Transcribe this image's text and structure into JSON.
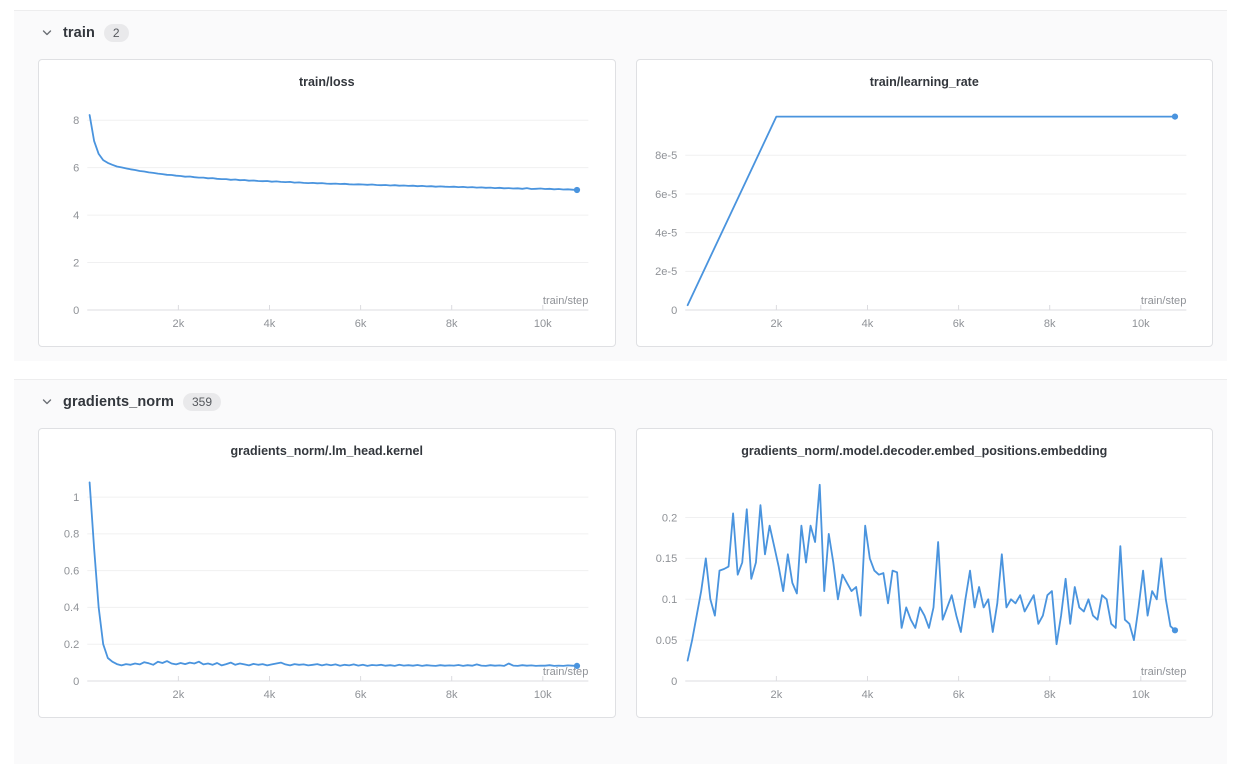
{
  "accent_color": "#4a94de",
  "grid_color": "#f0f0f1",
  "axis_color": "#dcdce0",
  "tick_text_color": "#8f9297",
  "sections": [
    {
      "label": "train",
      "badge": "2"
    },
    {
      "label": "gradients_norm",
      "badge": "359"
    }
  ],
  "chart_data": [
    {
      "type": "line",
      "title": "train/loss",
      "xlabel": "train/step",
      "xlim": [
        0,
        11000
      ],
      "ylim": [
        0,
        8.6
      ],
      "x_ticks": [
        {
          "v": 2000,
          "l": "2k"
        },
        {
          "v": 4000,
          "l": "4k"
        },
        {
          "v": 6000,
          "l": "6k"
        },
        {
          "v": 8000,
          "l": "8k"
        },
        {
          "v": 10000,
          "l": "10k"
        }
      ],
      "y_ticks": [
        {
          "v": 0,
          "l": "0"
        },
        {
          "v": 2,
          "l": "2"
        },
        {
          "v": 4,
          "l": "4"
        },
        {
          "v": 6,
          "l": "6"
        },
        {
          "v": 8,
          "l": "8"
        }
      ],
      "x_start": 50,
      "x_step": 100,
      "end_dot": true,
      "values": [
        8.22,
        7.12,
        6.58,
        6.32,
        6.2,
        6.12,
        6.05,
        6.01,
        5.97,
        5.93,
        5.9,
        5.86,
        5.84,
        5.8,
        5.78,
        5.75,
        5.73,
        5.7,
        5.69,
        5.66,
        5.65,
        5.62,
        5.63,
        5.6,
        5.58,
        5.58,
        5.55,
        5.56,
        5.53,
        5.52,
        5.52,
        5.49,
        5.5,
        5.47,
        5.48,
        5.45,
        5.46,
        5.44,
        5.43,
        5.44,
        5.41,
        5.42,
        5.4,
        5.39,
        5.4,
        5.37,
        5.38,
        5.36,
        5.35,
        5.36,
        5.34,
        5.35,
        5.33,
        5.32,
        5.33,
        5.31,
        5.32,
        5.3,
        5.29,
        5.3,
        5.29,
        5.28,
        5.29,
        5.27,
        5.26,
        5.27,
        5.25,
        5.26,
        5.24,
        5.25,
        5.23,
        5.24,
        5.22,
        5.23,
        5.21,
        5.22,
        5.2,
        5.21,
        5.2,
        5.19,
        5.2,
        5.18,
        5.19,
        5.17,
        5.18,
        5.16,
        5.17,
        5.15,
        5.16,
        5.14,
        5.15,
        5.13,
        5.14,
        5.12,
        5.13,
        5.11,
        5.14,
        5.1,
        5.11,
        5.12,
        5.1,
        5.11,
        5.09,
        5.1,
        5.08,
        5.09,
        5.07,
        5.06
      ]
    },
    {
      "type": "line",
      "title": "train/learning_rate",
      "xlabel": "train/step",
      "xlim": [
        0,
        11000
      ],
      "ylim": [
        0,
        0.0001055
      ],
      "x_ticks": [
        {
          "v": 2000,
          "l": "2k"
        },
        {
          "v": 4000,
          "l": "4k"
        },
        {
          "v": 6000,
          "l": "6k"
        },
        {
          "v": 8000,
          "l": "8k"
        },
        {
          "v": 10000,
          "l": "10k"
        }
      ],
      "y_ticks": [
        {
          "v": 0,
          "l": "0"
        },
        {
          "v": 2e-05,
          "l": "2e-5"
        },
        {
          "v": 4e-05,
          "l": "4e-5"
        },
        {
          "v": 6e-05,
          "l": "6e-5"
        },
        {
          "v": 8e-05,
          "l": "8e-5"
        }
      ],
      "end_dot": true,
      "x": [
        50,
        500,
        1000,
        1500,
        2000,
        3000,
        4000,
        5000,
        6000,
        7000,
        8000,
        9000,
        10000,
        10750
      ],
      "values": [
        2.5e-06,
        2.5e-05,
        5e-05,
        7.5e-05,
        0.0001,
        0.0001,
        0.0001,
        0.0001,
        0.0001,
        0.0001,
        0.0001,
        0.0001,
        0.0001,
        0.0001
      ]
    },
    {
      "type": "line",
      "title": "gradients_norm/.lm_head.kernel",
      "xlabel": "train/step",
      "xlim": [
        0,
        11000
      ],
      "ylim": [
        0,
        1.12
      ],
      "x_ticks": [
        {
          "v": 2000,
          "l": "2k"
        },
        {
          "v": 4000,
          "l": "4k"
        },
        {
          "v": 6000,
          "l": "6k"
        },
        {
          "v": 8000,
          "l": "8k"
        },
        {
          "v": 10000,
          "l": "10k"
        }
      ],
      "y_ticks": [
        {
          "v": 0,
          "l": "0"
        },
        {
          "v": 0.2,
          "l": "0.2"
        },
        {
          "v": 0.4,
          "l": "0.4"
        },
        {
          "v": 0.6,
          "l": "0.6"
        },
        {
          "v": 0.8,
          "l": "0.8"
        },
        {
          "v": 1,
          "l": "1"
        }
      ],
      "x_start": 50,
      "x_step": 100,
      "end_dot": true,
      "values": [
        1.08,
        0.72,
        0.4,
        0.2,
        0.125,
        0.105,
        0.092,
        0.085,
        0.092,
        0.088,
        0.095,
        0.09,
        0.102,
        0.096,
        0.088,
        0.105,
        0.098,
        0.108,
        0.095,
        0.09,
        0.098,
        0.092,
        0.1,
        0.095,
        0.105,
        0.09,
        0.095,
        0.088,
        0.098,
        0.085,
        0.092,
        0.1,
        0.088,
        0.095,
        0.09,
        0.085,
        0.093,
        0.088,
        0.092,
        0.085,
        0.09,
        0.095,
        0.1,
        0.09,
        0.085,
        0.092,
        0.088,
        0.09,
        0.085,
        0.088,
        0.092,
        0.085,
        0.09,
        0.086,
        0.09,
        0.083,
        0.088,
        0.085,
        0.09,
        0.084,
        0.088,
        0.082,
        0.087,
        0.085,
        0.088,
        0.083,
        0.086,
        0.082,
        0.088,
        0.084,
        0.086,
        0.083,
        0.087,
        0.082,
        0.086,
        0.084,
        0.082,
        0.086,
        0.083,
        0.085,
        0.084,
        0.087,
        0.082,
        0.086,
        0.083,
        0.09,
        0.084,
        0.082,
        0.086,
        0.083,
        0.085,
        0.082,
        0.095,
        0.084,
        0.082,
        0.086,
        0.083,
        0.085,
        0.082,
        0.084,
        0.083,
        0.086,
        0.082,
        0.084,
        0.082,
        0.085,
        0.083,
        0.082
      ]
    },
    {
      "type": "line",
      "title": "gradients_norm/.model.decoder.embed_positions.embedding",
      "xlabel": "train/step",
      "xlim": [
        0,
        11000
      ],
      "ylim": [
        0,
        0.252
      ],
      "x_ticks": [
        {
          "v": 2000,
          "l": "2k"
        },
        {
          "v": 4000,
          "l": "4k"
        },
        {
          "v": 6000,
          "l": "6k"
        },
        {
          "v": 8000,
          "l": "8k"
        },
        {
          "v": 10000,
          "l": "10k"
        }
      ],
      "y_ticks": [
        {
          "v": 0,
          "l": "0"
        },
        {
          "v": 0.05,
          "l": "0.05"
        },
        {
          "v": 0.1,
          "l": "0.1"
        },
        {
          "v": 0.15,
          "l": "0.15"
        },
        {
          "v": 0.2,
          "l": "0.2"
        }
      ],
      "x_start": 50,
      "x_step": 100,
      "end_dot": true,
      "values": [
        0.025,
        0.05,
        0.08,
        0.11,
        0.15,
        0.1,
        0.08,
        0.135,
        0.137,
        0.14,
        0.205,
        0.13,
        0.145,
        0.21,
        0.125,
        0.145,
        0.215,
        0.155,
        0.19,
        0.165,
        0.14,
        0.11,
        0.155,
        0.12,
        0.107,
        0.19,
        0.145,
        0.19,
        0.17,
        0.24,
        0.11,
        0.18,
        0.145,
        0.1,
        0.13,
        0.12,
        0.11,
        0.115,
        0.08,
        0.19,
        0.15,
        0.135,
        0.13,
        0.132,
        0.095,
        0.135,
        0.133,
        0.065,
        0.09,
        0.075,
        0.065,
        0.09,
        0.08,
        0.065,
        0.09,
        0.17,
        0.075,
        0.09,
        0.105,
        0.08,
        0.06,
        0.1,
        0.135,
        0.09,
        0.115,
        0.09,
        0.1,
        0.06,
        0.095,
        0.155,
        0.09,
        0.1,
        0.095,
        0.105,
        0.085,
        0.095,
        0.105,
        0.07,
        0.08,
        0.105,
        0.11,
        0.045,
        0.08,
        0.125,
        0.07,
        0.115,
        0.09,
        0.085,
        0.1,
        0.08,
        0.075,
        0.105,
        0.1,
        0.07,
        0.065,
        0.165,
        0.075,
        0.07,
        0.05,
        0.09,
        0.135,
        0.08,
        0.11,
        0.1,
        0.15,
        0.1,
        0.067,
        0.062
      ]
    }
  ]
}
